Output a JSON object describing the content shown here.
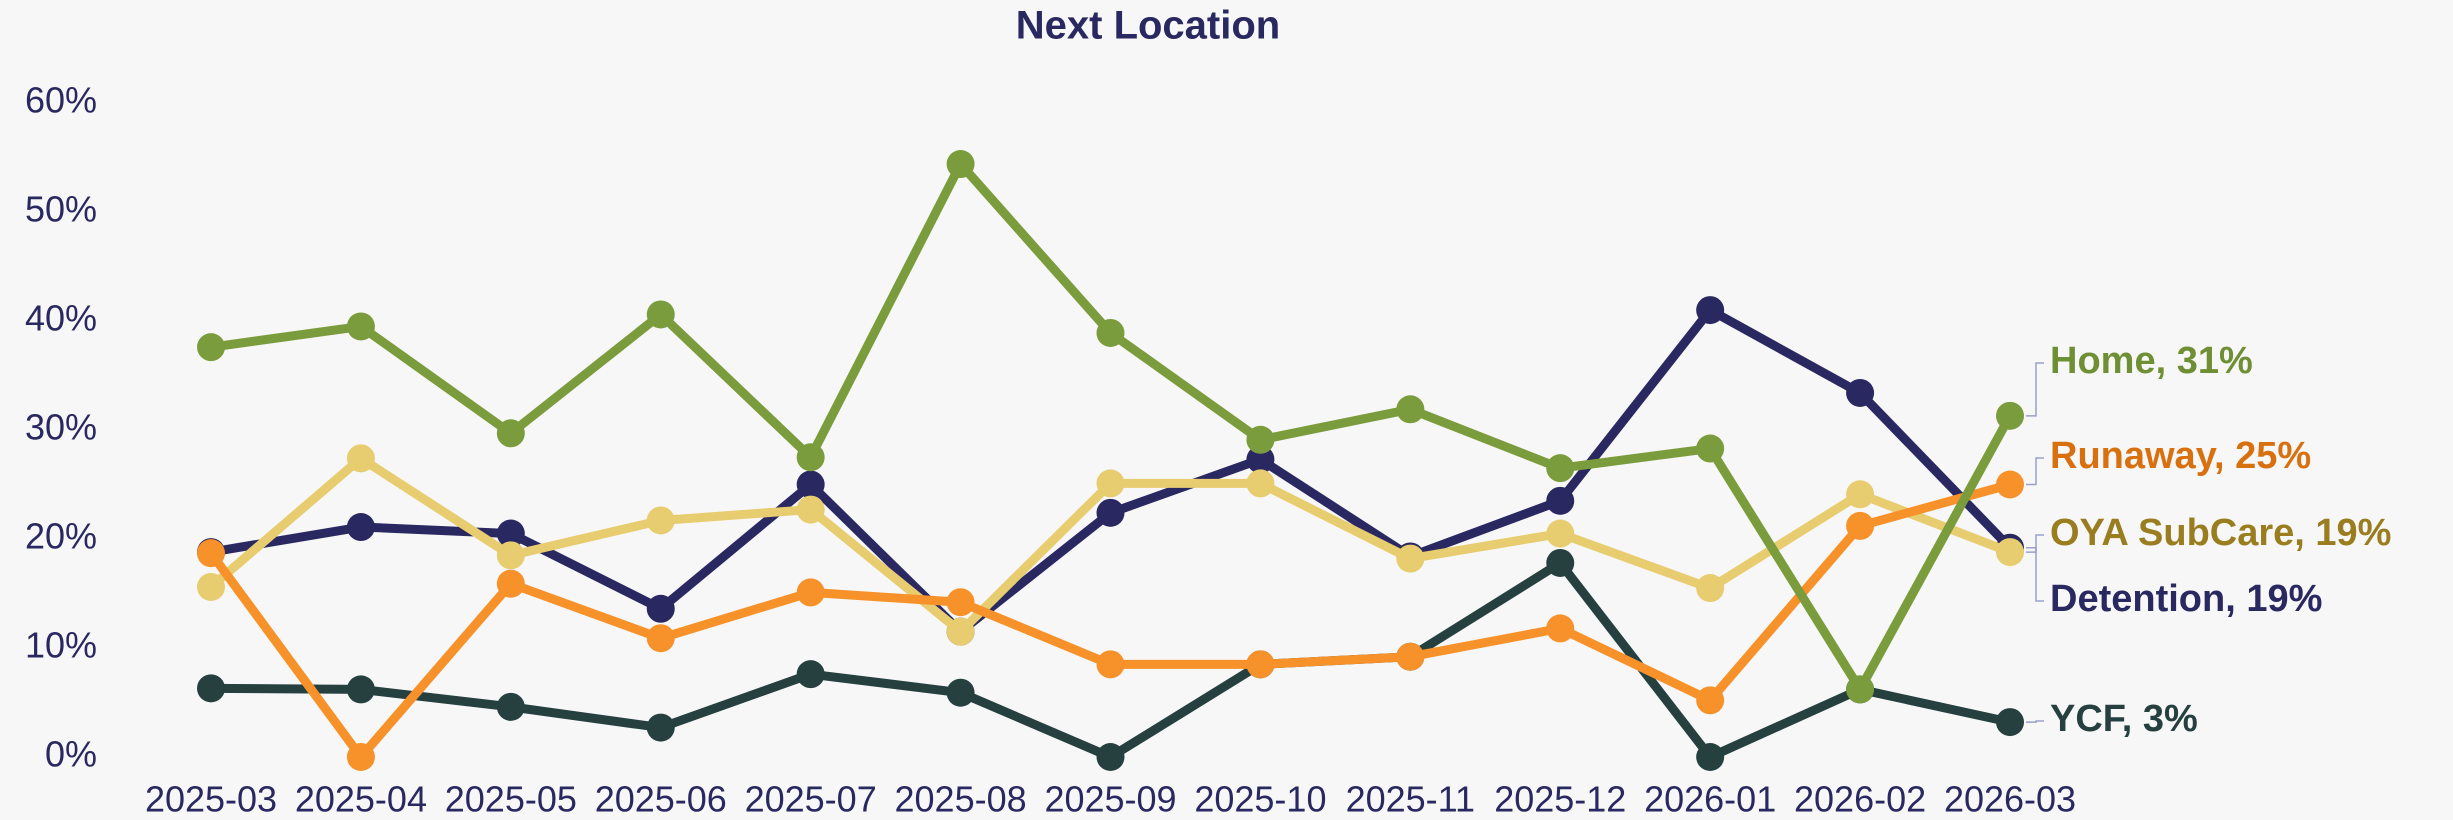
{
  "chart_data": {
    "type": "line",
    "title": "Next Location",
    "categories": [
      "2025-03",
      "2025-04",
      "2025-05",
      "2025-06",
      "2025-07",
      "2025-08",
      "2025-09",
      "2025-10",
      "2025-11",
      "2025-12",
      "2026-01",
      "2026-02",
      "2026-03"
    ],
    "series": [
      {
        "name": "Home",
        "end_label": "Home, 31%",
        "color": "#7a9c3c",
        "label_color": "#6f8f35",
        "values": [
          37.6,
          39.5,
          29.7,
          40.6,
          27.5,
          54.4,
          38.9,
          29.1,
          31.9,
          26.5,
          28.3,
          6.2,
          31.3
        ]
      },
      {
        "name": "Runaway",
        "end_label": "Runaway, 25%",
        "color": "#f7922a",
        "label_color": "#d9700f",
        "values": [
          18.7,
          0,
          15.9,
          10.9,
          15.1,
          14.2,
          8.5,
          8.5,
          9.2,
          11.8,
          5.2,
          21.2,
          25.0
        ]
      },
      {
        "name": "OYA SubCare",
        "end_label": "OYA SubCare, 19%",
        "color": "#e8cc70",
        "label_color": "#9a7d1f",
        "values": [
          15.6,
          27.4,
          18.5,
          21.7,
          22.7,
          11.5,
          25.1,
          25.1,
          18.2,
          20.5,
          15.5,
          24.1,
          18.8
        ]
      },
      {
        "name": "Detention",
        "end_label": "Detention, 19%",
        "color": "#2a2860",
        "label_color": "#2a2860",
        "values": [
          18.8,
          21.1,
          20.5,
          13.6,
          25.0,
          11.5,
          22.4,
          27.3,
          18.4,
          23.5,
          41.0,
          33.4,
          19.2
        ]
      },
      {
        "name": "YCF",
        "end_label": "YCF, 3%",
        "color": "#25403f",
        "label_color": "#25403f",
        "values": [
          6.3,
          6.2,
          4.6,
          2.7,
          7.6,
          5.9,
          0,
          8.5,
          9.2,
          17.8,
          0,
          6.2,
          3.2
        ]
      }
    ],
    "ylim": [
      0,
      60
    ],
    "yticks": [
      {
        "value": 0,
        "label": "0%"
      },
      {
        "value": 10,
        "label": "10%"
      },
      {
        "value": 20,
        "label": "20%"
      },
      {
        "value": 30,
        "label": "30%"
      },
      {
        "value": 40,
        "label": "40%"
      },
      {
        "value": 50,
        "label": "50%"
      },
      {
        "value": 60,
        "label": "60%"
      }
    ],
    "grid": false
  }
}
